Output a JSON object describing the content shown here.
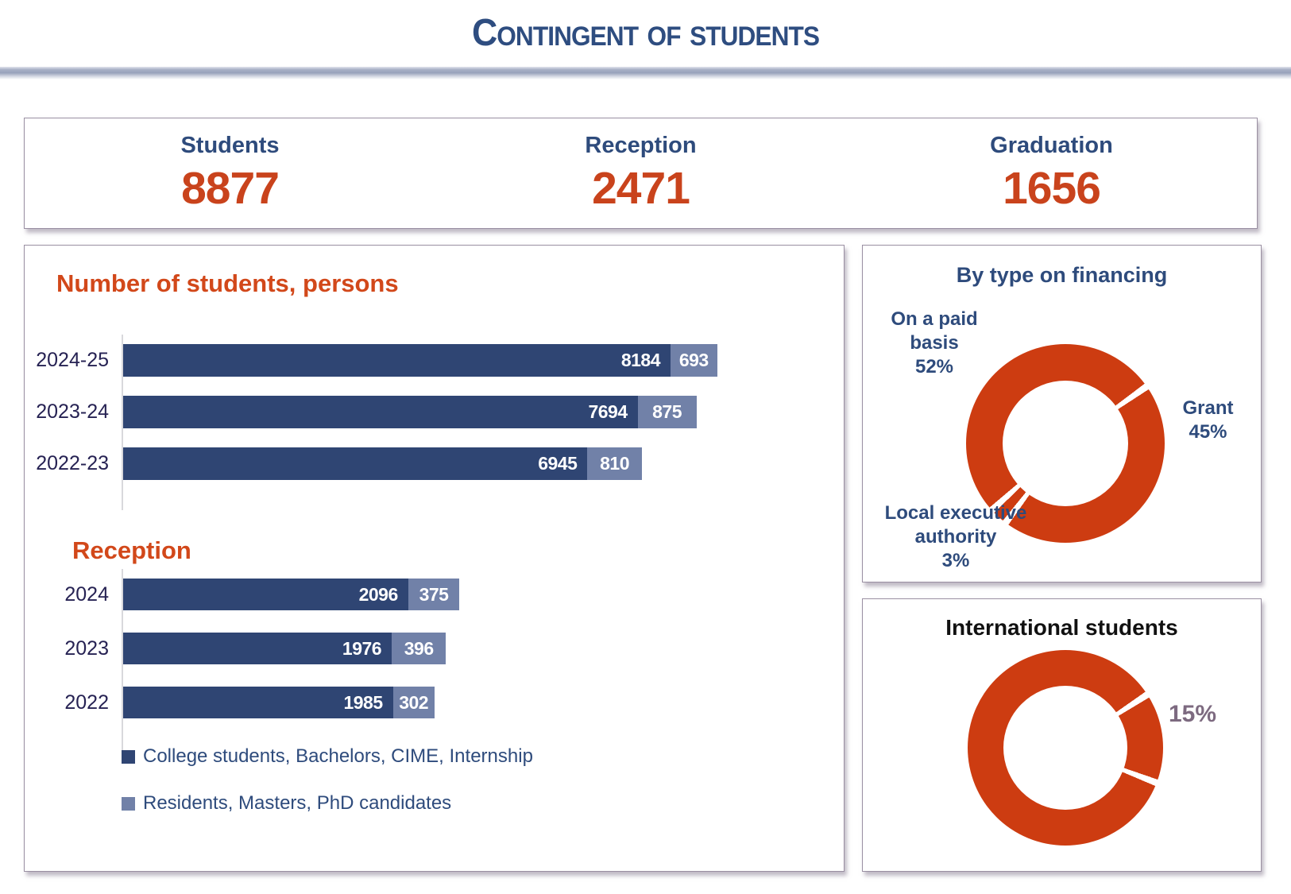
{
  "header": {
    "title": "Contingent of students"
  },
  "stats": {
    "items": [
      {
        "label": "Students",
        "value": "8877"
      },
      {
        "label": "Reception",
        "value": "2471"
      },
      {
        "label": "Graduation",
        "value": "1656"
      }
    ]
  },
  "legend": {
    "items": [
      {
        "label": "College students, Bachelors, CIME, Internship",
        "color": "#2f4573"
      },
      {
        "label": "Residents, Masters, PhD candidates",
        "color": "#7181a8"
      }
    ]
  },
  "colors": {
    "navy_text": "#2e4b7c",
    "orange_heading": "#d2481a",
    "orange_value": "#c9431c",
    "bar_dark": "#2f4573",
    "bar_light": "#7181a8",
    "donut_orange": "#cd3c11",
    "intl_pct_label": "#7d6a80"
  },
  "chart_data": [
    {
      "id": "students-by-year",
      "type": "bar",
      "orientation": "horizontal",
      "stacked": true,
      "title": "Number of students, persons",
      "categories": [
        "2024-25",
        "2023-24",
        "2022-23"
      ],
      "series": [
        {
          "name": "College students, Bachelors, CIME, Internship",
          "color": "#2f4573",
          "values": [
            8184,
            7694,
            6945
          ]
        },
        {
          "name": "Residents, Masters, PhD candidates",
          "color": "#7181a8",
          "values": [
            693,
            875,
            810
          ]
        }
      ],
      "xlim": [
        0,
        10600
      ],
      "data_labels": true,
      "grid": false,
      "legend_position": "below"
    },
    {
      "id": "reception-by-year",
      "type": "bar",
      "orientation": "horizontal",
      "stacked": true,
      "title": "Reception",
      "categories": [
        "2024",
        "2023",
        "2022"
      ],
      "series": [
        {
          "name": "College students, Bachelors, CIME, Internship",
          "color": "#2f4573",
          "values": [
            2096,
            1976,
            1985
          ]
        },
        {
          "name": "Residents, Masters, PhD candidates",
          "color": "#7181a8",
          "values": [
            375,
            396,
            302
          ]
        }
      ],
      "xlim": [
        0,
        5200
      ],
      "data_labels": true,
      "grid": false,
      "legend_position": "below"
    },
    {
      "id": "financing",
      "type": "pie",
      "donut": true,
      "title": "By type on financing",
      "ring_color": "#cd3c11",
      "rotation_deg": 55,
      "gap_deg": 4,
      "slices": [
        {
          "label": "Grant",
          "pct": 45,
          "pct_text": "45%"
        },
        {
          "label": "Local executive authority",
          "pct": 3,
          "pct_text": "3%"
        },
        {
          "label": "On a paid basis",
          "pct": 52,
          "pct_text": "52%"
        }
      ],
      "legend_position": "none"
    },
    {
      "id": "international-students",
      "type": "pie",
      "donut": true,
      "title": "International students",
      "ring_color": "#cd3c11",
      "rotation_deg": 57,
      "gap_deg": 4,
      "slices": [
        {
          "label": "International",
          "pct": 15,
          "pct_text": "15%"
        },
        {
          "label": "Other",
          "pct": 85,
          "pct_text": ""
        }
      ],
      "annotation": "15%",
      "legend_position": "none"
    }
  ]
}
